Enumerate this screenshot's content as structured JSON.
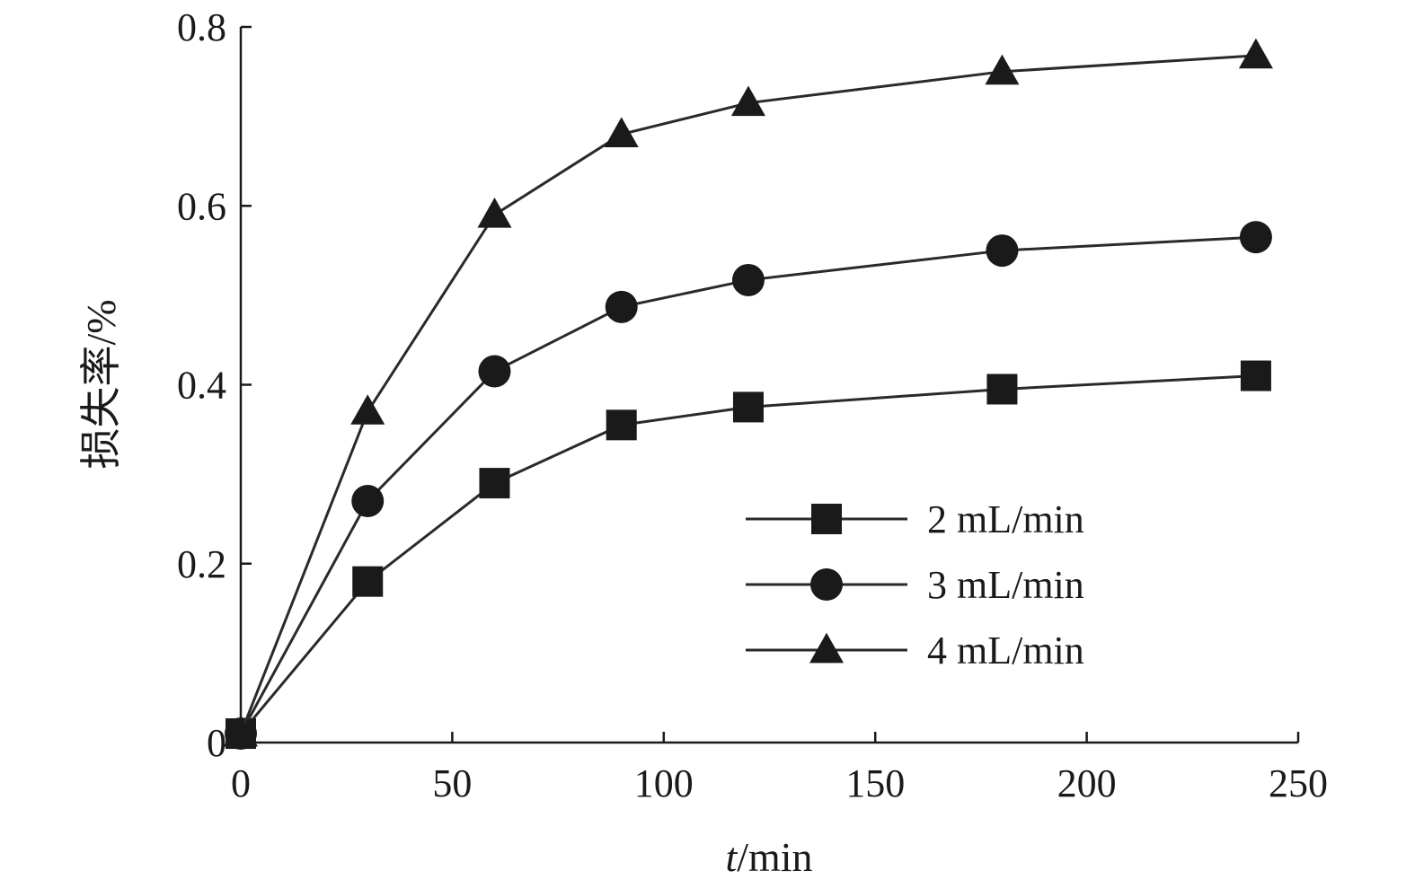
{
  "chart_data": {
    "type": "line",
    "xlabel_italic": "t",
    "xlabel_rest": "/min",
    "ylabel": "损失率/%",
    "xlim": [
      0,
      250
    ],
    "ylim": [
      0,
      0.8
    ],
    "xticks": [
      0,
      50,
      100,
      150,
      200,
      250
    ],
    "yticks": [
      0,
      0.2,
      0.4,
      0.6,
      0.8
    ],
    "ytick_labels": [
      "0",
      "0.2",
      "0.4",
      "0.6",
      "0.8"
    ],
    "xtick_labels": [
      "0",
      "50",
      "100",
      "150",
      "200",
      "250"
    ],
    "grid": false,
    "legend_position": "center-right",
    "x": [
      0,
      30,
      60,
      90,
      120,
      180,
      240
    ],
    "series": [
      {
        "name": "2 mL/min",
        "marker": "square",
        "values": [
          0.01,
          0.18,
          0.29,
          0.355,
          0.375,
          0.395,
          0.41
        ]
      },
      {
        "name": "3 mL/min",
        "marker": "circle",
        "values": [
          0.01,
          0.27,
          0.415,
          0.487,
          0.517,
          0.55,
          0.565
        ]
      },
      {
        "name": "4 mL/min",
        "marker": "triangle",
        "values": [
          0.01,
          0.37,
          0.59,
          0.68,
          0.715,
          0.75,
          0.768
        ]
      }
    ]
  }
}
